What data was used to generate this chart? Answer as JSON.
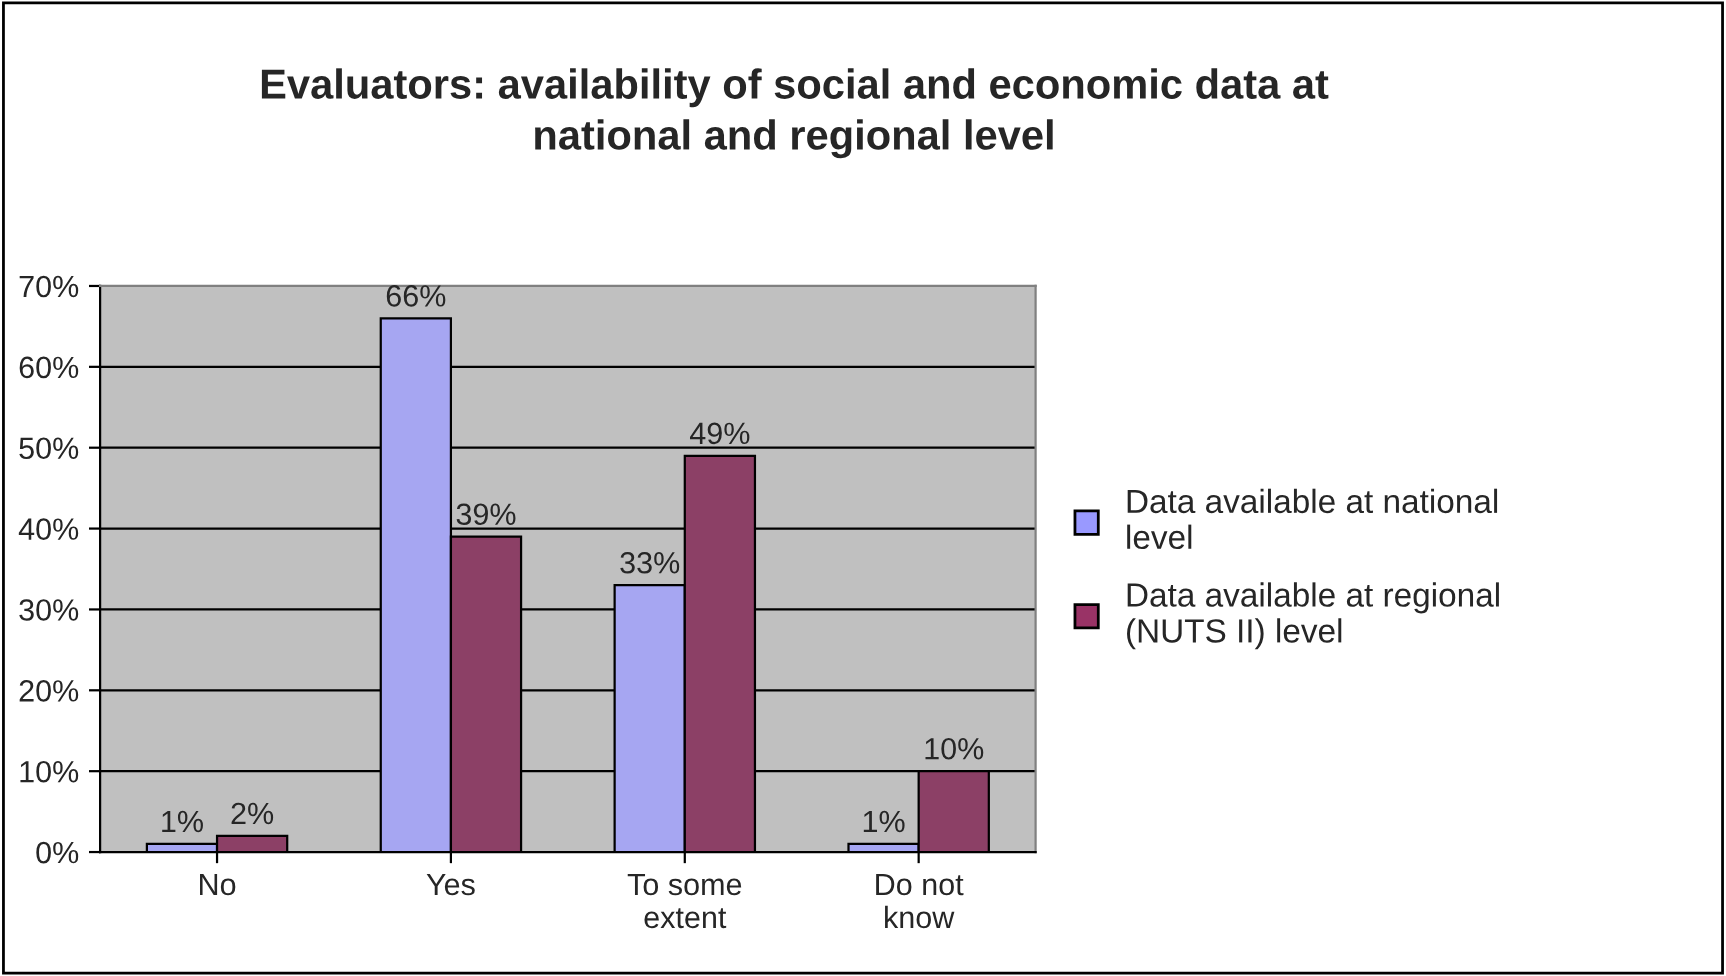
{
  "chart_data": {
    "type": "bar",
    "title": "Evaluators: availability of social and economic data at national and regional level",
    "categories": [
      "No",
      "Yes",
      "To some extent",
      "Do not know"
    ],
    "series": [
      {
        "name": "Data available at national level",
        "color": "#9999ff",
        "values": [
          1,
          66,
          33,
          1
        ],
        "value_labels": [
          "1%",
          "66%",
          "33%",
          "1%"
        ]
      },
      {
        "name": "Data available at regional (NUTS II) level",
        "color": "#993366",
        "values": [
          2,
          39,
          49,
          10
        ],
        "value_labels": [
          "2%",
          "39%",
          "49%",
          "10%"
        ]
      }
    ],
    "ylim": [
      0,
      70
    ],
    "yticks": [
      {
        "value": 0,
        "label": "0%"
      },
      {
        "value": 10,
        "label": "10%"
      },
      {
        "value": 20,
        "label": "20%"
      },
      {
        "value": 30,
        "label": "30%"
      },
      {
        "value": 40,
        "label": "40%"
      },
      {
        "value": 50,
        "label": "50%"
      },
      {
        "value": 60,
        "label": "60%"
      },
      {
        "value": 70,
        "label": "70%"
      }
    ],
    "grid": "y",
    "legend": "right"
  }
}
